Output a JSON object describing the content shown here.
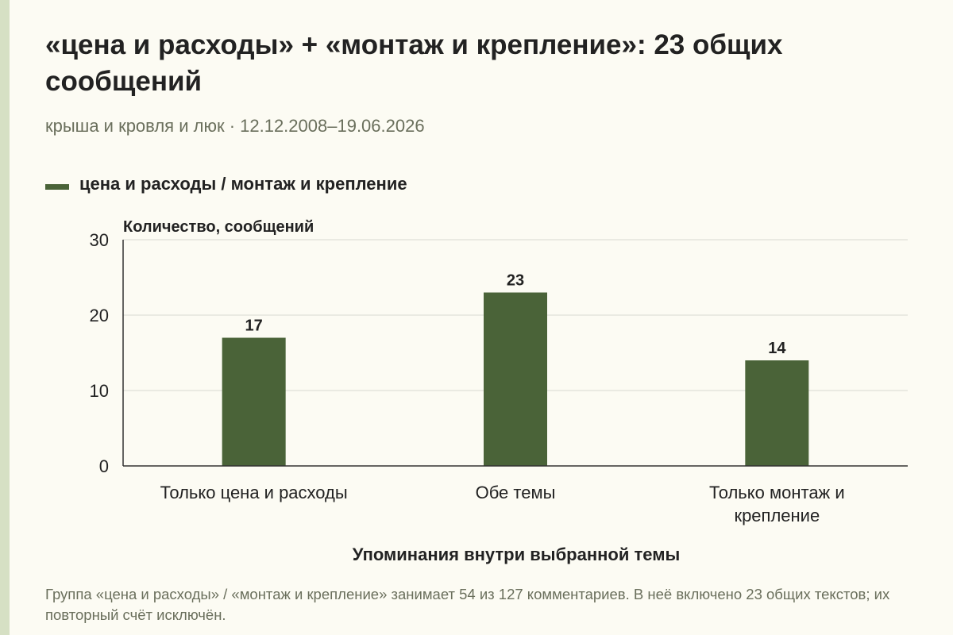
{
  "title": "«цена и расходы» + «монтаж и крепление»: 23 общих сообщений",
  "subtitle": "крыша и кровля и люк · 12.12.2008–19.06.2026",
  "legend_label": "цена и расходы / монтаж и крепление",
  "footnote": "Группа «цена и расходы» / «монтаж и крепление» занимает 54 из 127 комментариев. В неё включено 23 общих текстов; их повторный счёт исключён.",
  "colors": {
    "bar": "#4a6338",
    "accent_strip": "#d6e0c4",
    "background": "#fcfbf3"
  },
  "chart_data": {
    "type": "bar",
    "categories": [
      "Только цена и расходы",
      "Обе темы",
      "Только монтаж и крепление"
    ],
    "series": [
      {
        "name": "цена и расходы / монтаж и крепление",
        "values": [
          17,
          23,
          14
        ]
      }
    ],
    "data_labels": [
      "17",
      "23",
      "14"
    ],
    "ylabel": "Количество, сообщений",
    "xlabel": "Упоминания внутри выбранной темы",
    "ylim": [
      0,
      30
    ],
    "yticks": [
      0,
      10,
      20,
      30
    ],
    "grid": true,
    "legend_position": "top-left"
  }
}
